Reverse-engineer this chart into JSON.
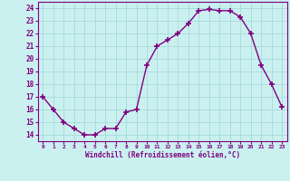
{
  "x": [
    0,
    1,
    2,
    3,
    4,
    5,
    6,
    7,
    8,
    9,
    10,
    11,
    12,
    13,
    14,
    15,
    16,
    17,
    18,
    19,
    20,
    21,
    22,
    23
  ],
  "y": [
    17.0,
    16.0,
    15.0,
    14.5,
    14.0,
    14.0,
    14.5,
    14.5,
    15.8,
    16.0,
    19.5,
    21.0,
    21.5,
    22.0,
    22.8,
    23.8,
    23.9,
    23.8,
    23.8,
    23.3,
    22.0,
    19.5,
    18.0,
    16.2
  ],
  "line_color": "#800080",
  "marker": "+",
  "marker_size": 4,
  "bg_color": "#cbf0f0",
  "grid_color": "#aadddd",
  "xlabel": "Windchill (Refroidissement éolien,°C)",
  "ytick_labels": [
    "14",
    "15",
    "16",
    "17",
    "18",
    "19",
    "20",
    "21",
    "22",
    "23",
    "24"
  ],
  "ytick_vals": [
    14,
    15,
    16,
    17,
    18,
    19,
    20,
    21,
    22,
    23,
    24
  ],
  "xlim": [
    -0.5,
    23.5
  ],
  "ylim": [
    13.5,
    24.5
  ],
  "xtick_labels": [
    "0",
    "1",
    "2",
    "3",
    "4",
    "5",
    "6",
    "7",
    "8",
    "9",
    "10",
    "11",
    "12",
    "13",
    "14",
    "15",
    "16",
    "17",
    "18",
    "19",
    "20",
    "21",
    "22",
    "23"
  ]
}
